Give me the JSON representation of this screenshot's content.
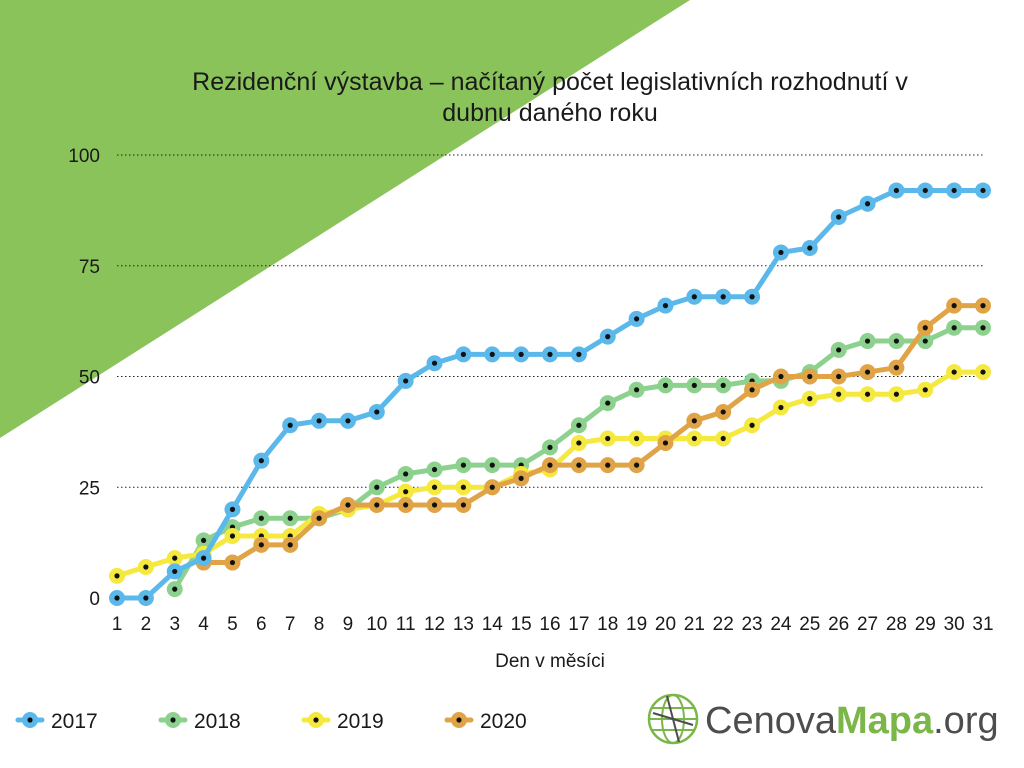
{
  "colors": {
    "triangle": "#8ac35a",
    "gridline": "#222222",
    "logo_accent": "#7ab648",
    "logo_text": "#4d4d4d"
  },
  "chart_data": {
    "type": "line",
    "title_lines": [
      "Rezidenční výstavba – načítaný počet legislativních rozhodnutí v",
      "dubnu daného roku"
    ],
    "xlabel": "Den v měsíci",
    "ylabel": "",
    "ylim": [
      0,
      100
    ],
    "yticks": [
      0,
      25,
      50,
      75,
      100
    ],
    "x": [
      1,
      2,
      3,
      4,
      5,
      6,
      7,
      8,
      9,
      10,
      11,
      12,
      13,
      14,
      15,
      16,
      17,
      18,
      19,
      20,
      21,
      22,
      23,
      24,
      25,
      26,
      27,
      28,
      29,
      30,
      31
    ],
    "grid": "horizontal dotted",
    "legend_position": "bottom-left",
    "series": [
      {
        "name": "2017",
        "color": "#5bb8ea",
        "values": [
          0,
          0,
          6,
          9,
          20,
          31,
          39,
          40,
          40,
          42,
          49,
          53,
          55,
          55,
          55,
          55,
          55,
          59,
          63,
          66,
          68,
          68,
          68,
          78,
          79,
          86,
          89,
          92,
          92,
          92,
          92
        ]
      },
      {
        "name": "2018",
        "color": "#8dd18f",
        "values": [
          null,
          null,
          2,
          13,
          16,
          18,
          18,
          18,
          20,
          25,
          28,
          29,
          30,
          30,
          30,
          34,
          39,
          44,
          47,
          48,
          48,
          48,
          49,
          49,
          51,
          56,
          58,
          58,
          58,
          61,
          61
        ]
      },
      {
        "name": "2019",
        "color": "#f5e83e",
        "values": [
          5,
          7,
          9,
          10,
          14,
          14,
          14,
          19,
          20,
          21,
          24,
          25,
          25,
          25,
          28,
          29,
          35,
          36,
          36,
          36,
          36,
          36,
          39,
          43,
          45,
          46,
          46,
          46,
          47,
          51,
          51
        ]
      },
      {
        "name": "2020",
        "color": "#e0a447",
        "values": [
          null,
          null,
          null,
          8,
          8,
          12,
          12,
          18,
          21,
          21,
          21,
          21,
          21,
          25,
          27,
          30,
          30,
          30,
          30,
          35,
          40,
          42,
          47,
          50,
          50,
          50,
          51,
          52,
          61,
          66,
          66
        ]
      }
    ]
  },
  "logo": {
    "part1": "Cenova",
    "part2": "Mapa",
    "part3": ".org",
    "icon": "globe-icon"
  }
}
